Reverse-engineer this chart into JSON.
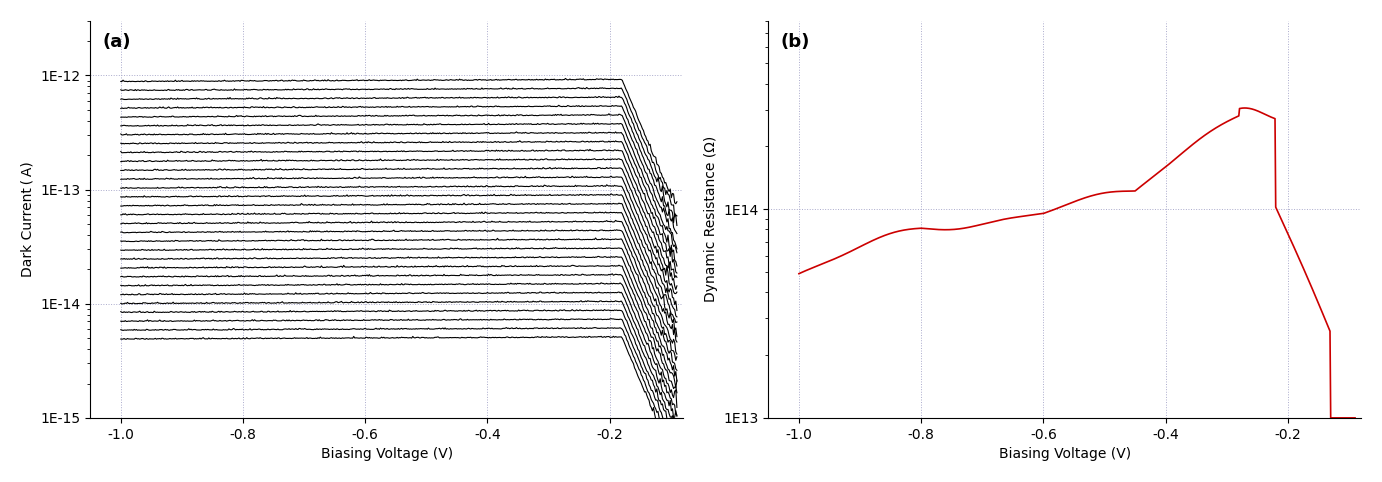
{
  "fig_width": 13.82,
  "fig_height": 4.82,
  "dpi": 100,
  "background_color": "#ffffff",
  "subplot_a": {
    "label": "(a)",
    "xlabel": "Biasing Voltage (V)",
    "ylabel": "Dark Current ( A)",
    "xlim": [
      -1.05,
      -0.08
    ],
    "ylim_log": [
      1e-15,
      3e-12
    ],
    "yticks": [
      1e-15,
      1e-14,
      1e-13,
      1e-12
    ],
    "ytick_labels": [
      "1E-15",
      "1E-14",
      "1E-13",
      "1E-12"
    ],
    "xticks": [
      -1.0,
      -0.8,
      -0.6,
      -0.4,
      -0.2
    ],
    "grid_color": "#aaaacc",
    "grid_style": ":",
    "n_curves": 30,
    "curve_color": "#000000",
    "curve_linewidth": 0.8
  },
  "subplot_b": {
    "label": "(b)",
    "xlabel": "Biasing Voltage (V)",
    "ylabel": "Dynamic Resistance (Ω)",
    "xlim": [
      -1.05,
      -0.08
    ],
    "ylim_log": [
      10000000000000.0,
      800000000000000.0
    ],
    "yticks": [
      10000000000000.0,
      100000000000000.0
    ],
    "ytick_labels": [
      "1E13",
      "1E14"
    ],
    "xticks": [
      -1.0,
      -0.8,
      -0.6,
      -0.4,
      -0.2
    ],
    "grid_color": "#aaaacc",
    "grid_style": ":",
    "curve_color": "#cc0000",
    "curve_linewidth": 1.2
  }
}
